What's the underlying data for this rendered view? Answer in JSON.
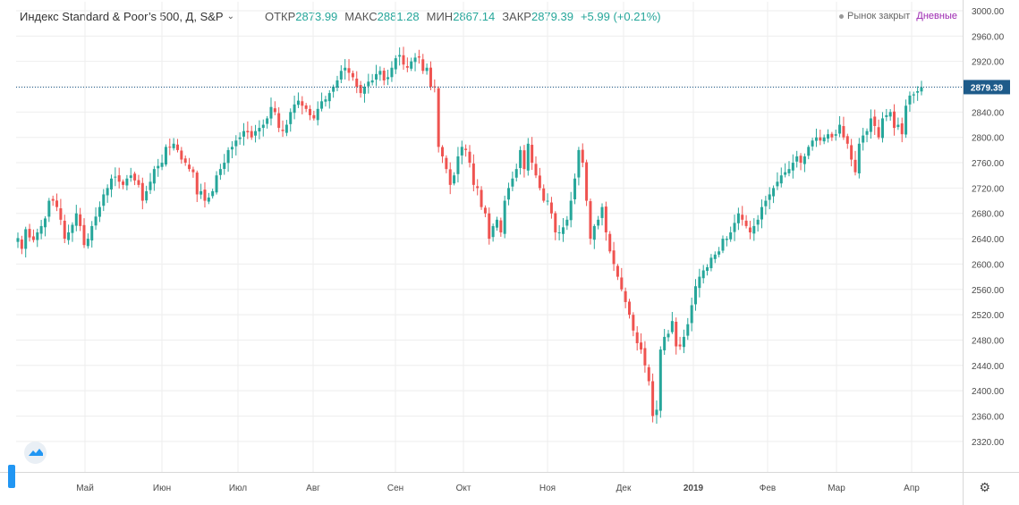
{
  "header": {
    "title": "Индекс Standard & Poor’s 500, Д, S&P",
    "open_label": "ОТКР",
    "open": "2873.99",
    "high_label": "МАКС",
    "high": "2881.28",
    "low_label": "МИН",
    "low": "2867.14",
    "close_label": "ЗАКР",
    "close": "2879.39",
    "change": "+5.99 (+0.21%)"
  },
  "status": {
    "market": "Рынок закрыт",
    "interval": "Дневные"
  },
  "colors": {
    "up": "#26a69a",
    "down": "#ef5350",
    "last_price_bg": "#1e5b8a",
    "grid": "#eeeeee"
  },
  "chart_data": {
    "type": "candlestick",
    "last_price_label": "2879.39",
    "ylim": [
      2300,
      3000
    ],
    "y_ticks": [
      "3000.00",
      "2960.00",
      "2920.00",
      "2880.00",
      "2840.00",
      "2800.00",
      "2760.00",
      "2720.00",
      "2680.00",
      "2640.00",
      "2600.00",
      "2560.00",
      "2520.00",
      "2480.00",
      "2440.00",
      "2400.00",
      "2360.00",
      "2320.00"
    ],
    "x_ticks": [
      "Май",
      "Июн",
      "Июл",
      "Авг",
      "Сен",
      "Окт",
      "Ноя",
      "Дек",
      "2019",
      "Фев",
      "Мар",
      "Апр"
    ],
    "series": [
      {
        "values": [
          2641,
          2624,
          2655,
          2642,
          2638,
          2650,
          2660,
          2672,
          2700,
          2700,
          2690,
          2670,
          2640,
          2650,
          2662,
          2680,
          2660,
          2630,
          2640,
          2660,
          2675,
          2690,
          2710,
          2720,
          2735,
          2738,
          2730,
          2725,
          2735,
          2740,
          2732,
          2725,
          2700,
          2715,
          2730,
          2750,
          2755,
          2760,
          2785,
          2785,
          2790,
          2780,
          2765,
          2760,
          2750,
          2745,
          2710,
          2715,
          2700,
          2705,
          2715,
          2740,
          2750,
          2760,
          2780,
          2785,
          2795,
          2800,
          2810,
          2808,
          2800,
          2810,
          2815,
          2820,
          2830,
          2848,
          2840,
          2815,
          2810,
          2820,
          2840,
          2852,
          2858,
          2850,
          2845,
          2835,
          2830,
          2845,
          2857,
          2860,
          2870,
          2880,
          2890,
          2905,
          2910,
          2902,
          2895,
          2880,
          2870,
          2880,
          2888,
          2890,
          2900,
          2905,
          2890,
          2895,
          2910,
          2925,
          2930,
          2915,
          2910,
          2920,
          2926,
          2926,
          2905,
          2910,
          2880,
          2880,
          2785,
          2770,
          2750,
          2725,
          2740,
          2770,
          2785,
          2780,
          2760,
          2725,
          2720,
          2690,
          2680,
          2640,
          2660,
          2670,
          2650,
          2700,
          2720,
          2735,
          2750,
          2780,
          2750,
          2790,
          2760,
          2740,
          2720,
          2700,
          2700,
          2680,
          2650,
          2650,
          2658,
          2670,
          2700,
          2735,
          2780,
          2760,
          2700,
          2640,
          2660,
          2670,
          2690,
          2650,
          2620,
          2600,
          2580,
          2560,
          2540,
          2520,
          2495,
          2475,
          2465,
          2440,
          2415,
          2360,
          2370,
          2465,
          2485,
          2490,
          2510,
          2470,
          2470,
          2485,
          2505,
          2535,
          2565,
          2580,
          2590,
          2595,
          2610,
          2615,
          2620,
          2640,
          2640,
          2650,
          2665,
          2680,
          2670,
          2660,
          2650,
          2660,
          2670,
          2690,
          2700,
          2710,
          2720,
          2730,
          2740,
          2745,
          2750,
          2760,
          2770,
          2760,
          2770,
          2785,
          2795,
          2800,
          2795,
          2800,
          2805,
          2800,
          2805,
          2820,
          2800,
          2790,
          2765,
          2745,
          2790,
          2803,
          2810,
          2830,
          2818,
          2800,
          2830,
          2835,
          2840,
          2815,
          2820,
          2805,
          2850,
          2866,
          2868,
          2873,
          2879
        ]
      }
    ]
  }
}
